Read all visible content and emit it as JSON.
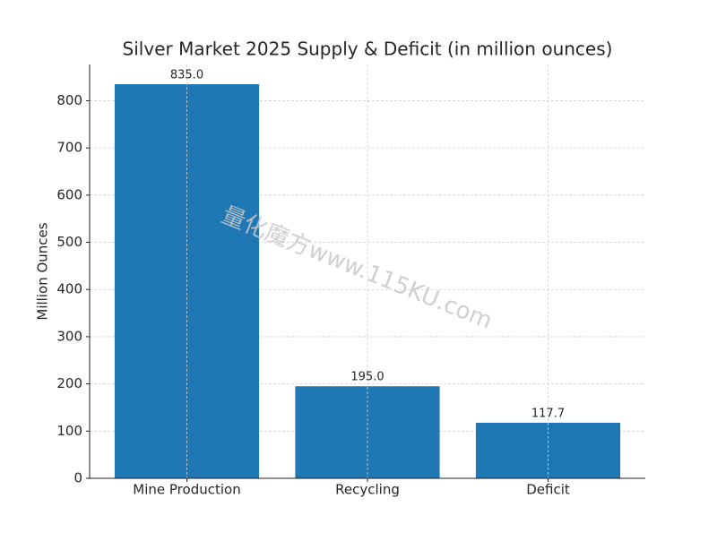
{
  "chart_data": {
    "type": "bar",
    "title": "Silver Market 2025 Supply & Deficit (in million ounces)",
    "ylabel": "Million Ounces",
    "categories": [
      "Mine Production",
      "Recycling",
      "Deficit"
    ],
    "values": [
      835,
      195,
      117.7
    ],
    "value_labels": [
      "835.0",
      "195.0",
      "117.7"
    ],
    "color": "#1f77b4",
    "ylim": [
      0,
      876.75
    ],
    "yticks": [
      0,
      100,
      200,
      300,
      400,
      500,
      600,
      700,
      800
    ],
    "grid": true,
    "watermark": "量化魔方www.115KU.com"
  }
}
